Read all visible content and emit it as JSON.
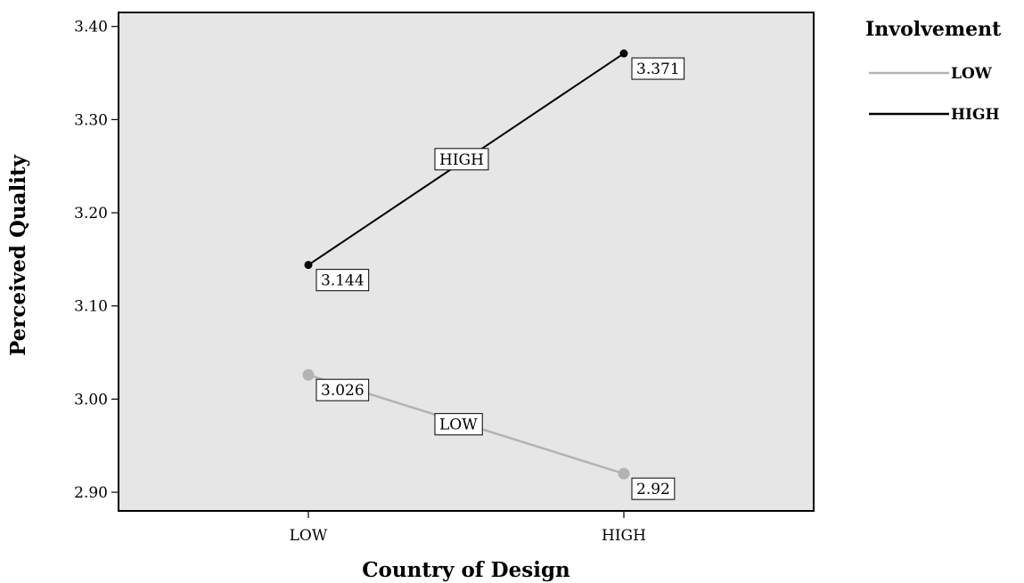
{
  "chart_data": {
    "type": "line",
    "xlabel": "Country of Design",
    "ylabel": "Perceived Quality",
    "categories": [
      "LOW",
      "HIGH"
    ],
    "ylim": [
      2.88,
      3.415
    ],
    "yticks": [
      2.9,
      3.0,
      3.1,
      3.2,
      3.3,
      3.4
    ],
    "ytick_labels": [
      "2.90",
      "3.00",
      "3.10",
      "3.20",
      "3.30",
      "3.40"
    ],
    "legend": {
      "title": "Involvement",
      "position": "right"
    },
    "plot_background": "#e6e6e6",
    "series": [
      {
        "name": "LOW",
        "values": [
          3.026,
          2.92
        ],
        "value_labels": [
          "3.026",
          "2.92"
        ],
        "color": "#b3b3b3"
      },
      {
        "name": "HIGH",
        "values": [
          3.144,
          3.371
        ],
        "value_labels": [
          "3.144",
          "3.371"
        ],
        "color": "#000000"
      }
    ]
  }
}
